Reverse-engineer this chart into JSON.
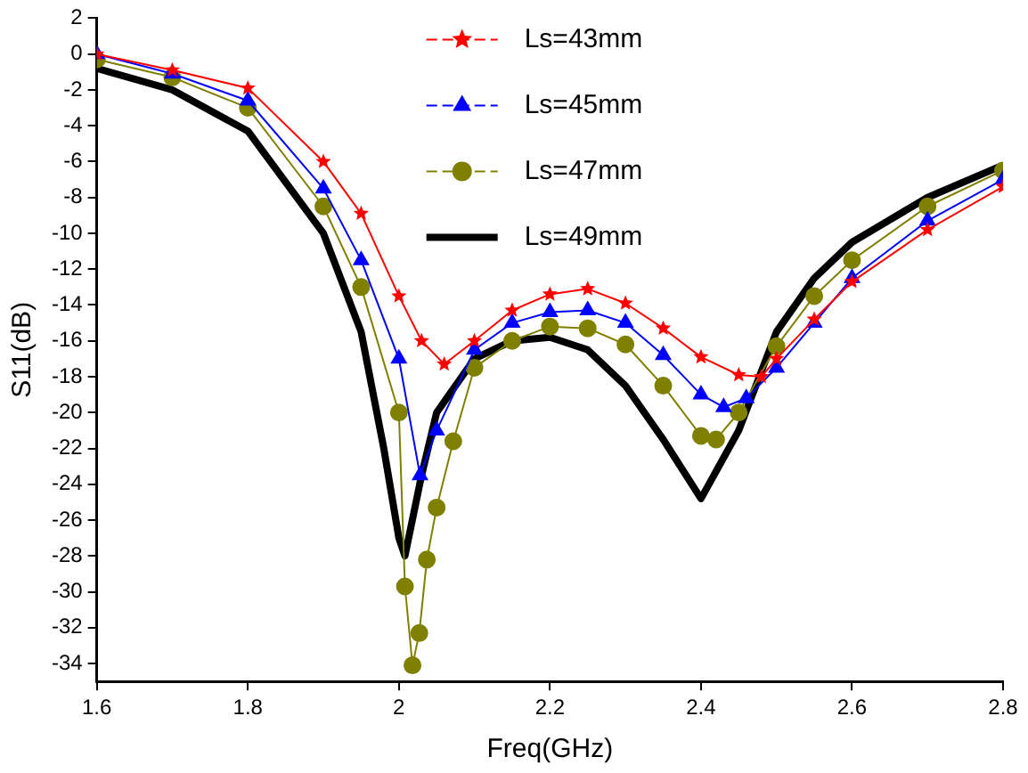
{
  "chart_data": {
    "type": "line",
    "xlabel": "Freq(GHz)",
    "ylabel": "S11(dB)",
    "xlim": [
      1.6,
      2.8
    ],
    "xticks": [
      1.6,
      1.8,
      2.0,
      2.2,
      2.4,
      2.6,
      2.8
    ],
    "ylim": [
      -35,
      2
    ],
    "yticks": [
      2,
      0,
      -2,
      -4,
      -6,
      -8,
      -10,
      -12,
      -14,
      -16,
      -18,
      -20,
      -22,
      -24,
      -26,
      -28,
      -30,
      -32,
      -34
    ],
    "grid": false,
    "legend": "top",
    "series": [
      {
        "name": "Ls=43mm",
        "color": "#ff0000",
        "marker": "star",
        "x": [
          1.6,
          1.7,
          1.8,
          1.9,
          1.95,
          2.0,
          2.03,
          2.06,
          2.1,
          2.15,
          2.2,
          2.25,
          2.3,
          2.35,
          2.4,
          2.45,
          2.48,
          2.5,
          2.55,
          2.6,
          2.7,
          2.8
        ],
        "values": [
          0,
          -0.9,
          -1.9,
          -6,
          -8.9,
          -13.5,
          -16,
          -17.3,
          -16,
          -14.3,
          -13.4,
          -13.1,
          -13.9,
          -15.3,
          -16.9,
          -17.9,
          -18,
          -17,
          -14.8,
          -12.7,
          -9.8,
          -7.4
        ]
      },
      {
        "name": "Ls=45mm",
        "color": "#0000ff",
        "marker": "triangle",
        "x": [
          1.6,
          1.7,
          1.8,
          1.9,
          1.95,
          2.0,
          2.028,
          2.05,
          2.1,
          2.15,
          2.2,
          2.25,
          2.3,
          2.35,
          2.4,
          2.43,
          2.46,
          2.5,
          2.55,
          2.6,
          2.7,
          2.8
        ],
        "values": [
          0,
          -1.1,
          -2.6,
          -7.5,
          -11.5,
          -17,
          -23.5,
          -21,
          -16.5,
          -15,
          -14.4,
          -14.3,
          -15,
          -16.8,
          -19,
          -19.7,
          -19.2,
          -17.5,
          -15,
          -12.5,
          -9.3,
          -7
        ]
      },
      {
        "name": "Ls=47mm",
        "color": "#808000",
        "marker": "circle",
        "x": [
          1.6,
          1.7,
          1.8,
          1.9,
          1.95,
          2.0,
          2.008,
          2.018,
          2.027,
          2.037,
          2.05,
          2.072,
          2.1,
          2.15,
          2.2,
          2.25,
          2.3,
          2.35,
          2.4,
          2.42,
          2.45,
          2.5,
          2.55,
          2.6,
          2.7,
          2.8
        ],
        "values": [
          -0.3,
          -1.3,
          -3,
          -8.5,
          -13,
          -20,
          -29.7,
          -34.1,
          -32.3,
          -28.2,
          -25.3,
          -21.6,
          -17.5,
          -16,
          -15.2,
          -15.3,
          -16.2,
          -18.5,
          -21.3,
          -21.5,
          -20,
          -16.3,
          -13.5,
          -11.5,
          -8.5,
          -6.5
        ]
      },
      {
        "name": "Ls=49mm",
        "color": "#000000",
        "marker": "none",
        "x": [
          1.6,
          1.7,
          1.8,
          1.9,
          1.95,
          1.98,
          2.0,
          2.008,
          2.03,
          2.05,
          2.1,
          2.15,
          2.2,
          2.25,
          2.3,
          2.35,
          2.4,
          2.45,
          2.5,
          2.55,
          2.6,
          2.7,
          2.8
        ],
        "values": [
          -0.8,
          -2,
          -4.3,
          -10,
          -15.5,
          -22,
          -27,
          -28,
          -23.5,
          -20,
          -17,
          -16,
          -15.8,
          -16.5,
          -18.5,
          -21.5,
          -24.8,
          -21,
          -15.5,
          -12.5,
          -10.5,
          -8,
          -6.2
        ]
      }
    ]
  }
}
